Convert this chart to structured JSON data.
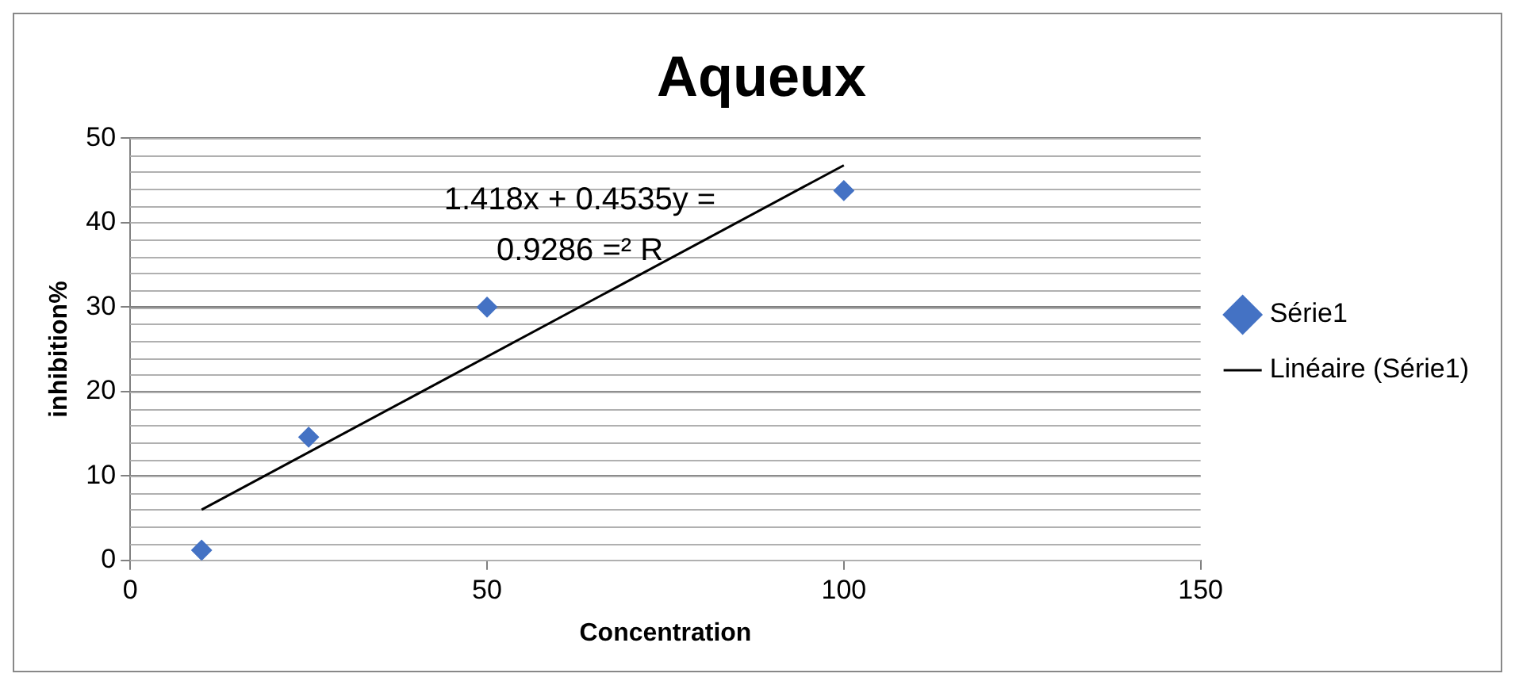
{
  "chart_data": {
    "type": "scatter",
    "title": "Aqueux",
    "xlabel": "Concentration",
    "ylabel": "inhibition%",
    "series": [
      {
        "name": "Série1",
        "type": "scatter",
        "color": "#4472c4",
        "marker": "diamond",
        "x": [
          10,
          25,
          50,
          100
        ],
        "values": [
          1.2,
          14.6,
          30,
          43.8
        ]
      },
      {
        "name": "Linéaire (Série1)",
        "type": "line",
        "color": "#000000",
        "marker": "none",
        "line_style": "solid",
        "x": [
          10,
          100
        ],
        "values": [
          6,
          46.8
        ]
      }
    ],
    "xlim": [
      0,
      150
    ],
    "xticks": [
      0,
      50,
      100,
      150
    ],
    "ylim": [
      0,
      50
    ],
    "yticks": [
      0,
      10,
      20,
      30,
      40,
      50
    ],
    "grid": "y",
    "legend": "right",
    "annotations": [
      "1.418x + 0.4535y = 0.9286 =² R"
    ]
  }
}
